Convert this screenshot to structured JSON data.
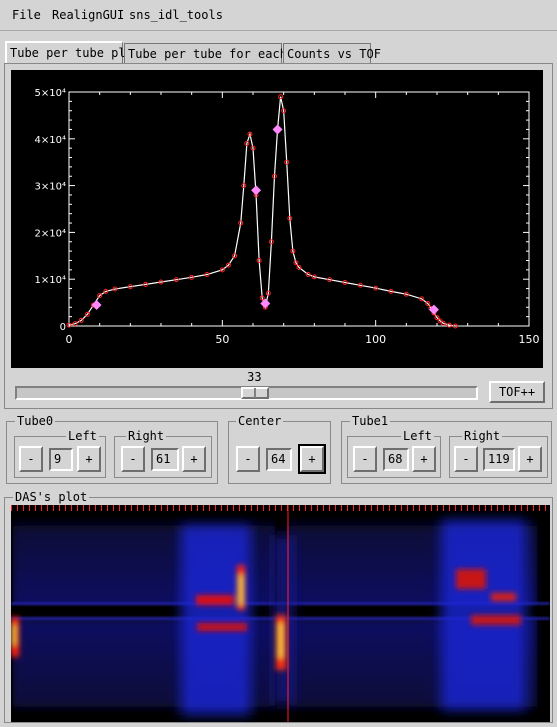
{
  "menu": {
    "items": [
      "File",
      "RealignGUI",
      "sns_idl_tools"
    ]
  },
  "tabs": [
    "Tube per tube plot",
    "Tube per tube for each Nt",
    "Counts vs TOF"
  ],
  "slider": {
    "value": "33",
    "fraction": 0.52
  },
  "buttons": {
    "tof_next": "TOF++",
    "minus": "-",
    "plus": "+"
  },
  "tube0": {
    "title": "Tube0",
    "left_label": "Left",
    "left_value": "9",
    "right_label": "Right",
    "right_value": "61"
  },
  "center": {
    "title": "Center",
    "value": "64"
  },
  "tube1": {
    "title": "Tube1",
    "left_label": "Left",
    "left_value": "68",
    "right_label": "Right",
    "right_value": "119"
  },
  "das": {
    "title": "DAS's plot"
  },
  "chart_data": {
    "type": "line",
    "xlim": [
      0,
      150
    ],
    "ylim": [
      0,
      50000
    ],
    "x_ticks": [
      "0",
      "50",
      "100",
      "150"
    ],
    "y_ticks": [
      "0",
      "1×10⁴",
      "2×10⁴",
      "3×10⁴",
      "4×10⁴",
      "5×10⁴"
    ],
    "series": [
      {
        "x": [
          0,
          2,
          4,
          6,
          8,
          10,
          12,
          15,
          20,
          25,
          30,
          35,
          40,
          45,
          50,
          52,
          54,
          56,
          57,
          58,
          59,
          60,
          61,
          62,
          63,
          64,
          65,
          66,
          67,
          68,
          69,
          70,
          71,
          72,
          73,
          74,
          75,
          78,
          80,
          85,
          90,
          95,
          100,
          105,
          110,
          115,
          117,
          118,
          119,
          120,
          121,
          122,
          124,
          126
        ],
        "y": [
          200,
          500,
          1200,
          2500,
          4500,
          6500,
          7400,
          7900,
          8400,
          8900,
          9400,
          9900,
          10400,
          11000,
          12000,
          13000,
          15000,
          22000,
          30000,
          39000,
          41000,
          38000,
          28000,
          14000,
          6000,
          4000,
          7000,
          18000,
          32000,
          42000,
          49000,
          46000,
          35000,
          23000,
          16000,
          13500,
          12500,
          11000,
          10500,
          9900,
          9300,
          8700,
          8100,
          7400,
          6800,
          5800,
          4800,
          3800,
          2800,
          1800,
          1100,
          600,
          200,
          0
        ],
        "color": "#ffffff",
        "marker_color": "#ff2020"
      }
    ],
    "highlight_points": [
      {
        "x": 9,
        "y": 4500
      },
      {
        "x": 61,
        "y": 29000
      },
      {
        "x": 64,
        "y": 4800
      },
      {
        "x": 68,
        "y": 42000
      },
      {
        "x": 119,
        "y": 3500
      }
    ],
    "highlight_color": "#ff88ff",
    "cursor_x": 33
  }
}
